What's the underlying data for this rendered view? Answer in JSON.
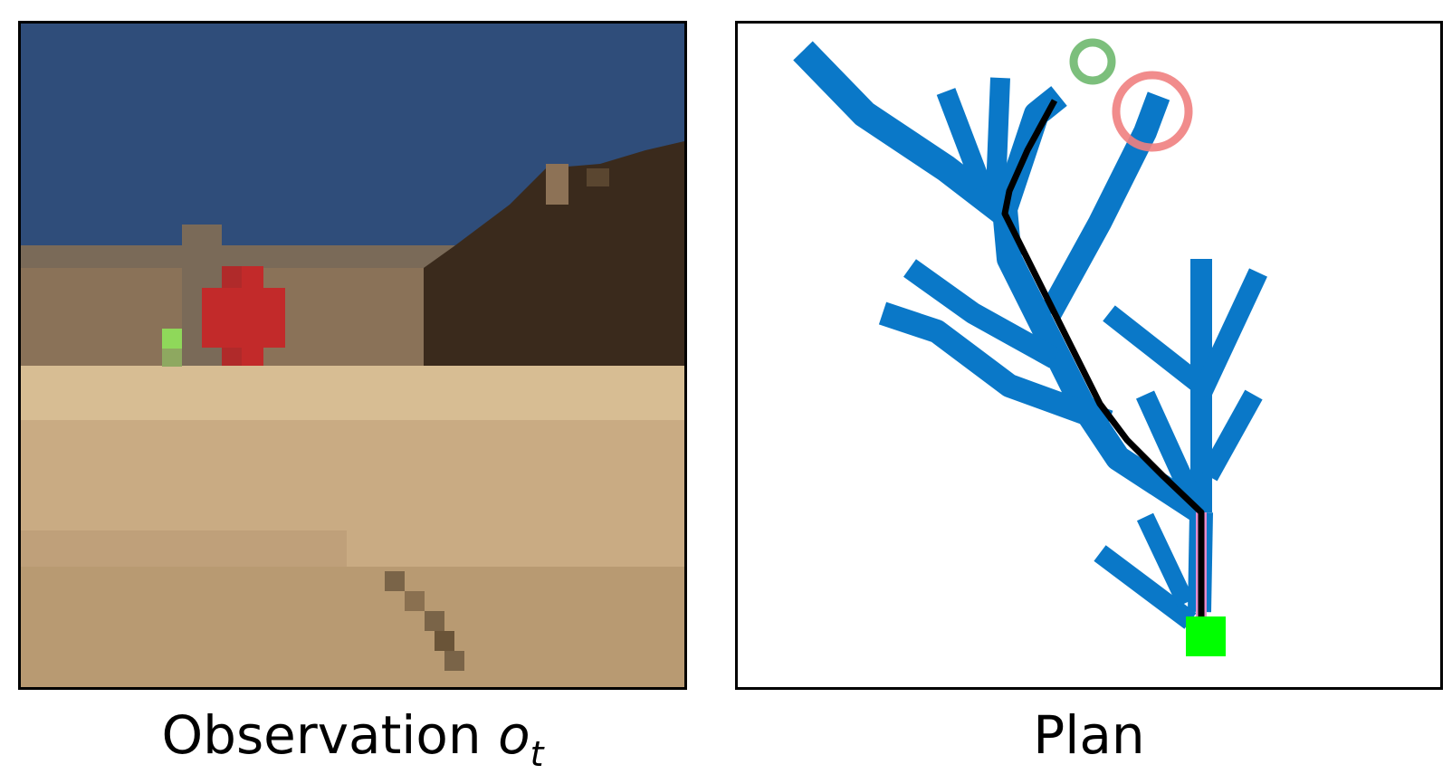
{
  "panels": {
    "observation": {
      "caption_text": "Observation ",
      "caption_math": "o",
      "caption_subscript": "t",
      "colors": {
        "sky": "#2f4d7a",
        "sand": "#c9ab83",
        "rocks": "#3a2a1c",
        "red_target": "#c22a2a",
        "green_target": "#8fd85a"
      }
    },
    "plan": {
      "caption_text": "Plan",
      "colors": {
        "tree": "#0a78c8",
        "path": "#000000",
        "start_path": "#e88ccc",
        "start_marker": "#00ff00",
        "goal_green_ring": "#7cbf7c",
        "goal_red_ring": "#f08080"
      }
    }
  }
}
